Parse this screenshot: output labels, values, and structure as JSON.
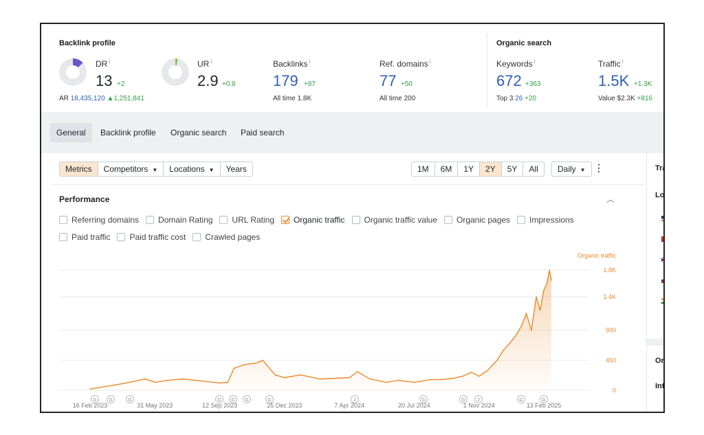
{
  "backlink_profile": {
    "title": "Backlink profile",
    "dr": {
      "label": "DR",
      "value": "13",
      "delta": "+2",
      "fill_fraction": 0.13
    },
    "ar": {
      "label": "AR",
      "value": "18,435,120",
      "delta": "▲1,251,841"
    },
    "ur": {
      "label": "UR",
      "value": "2.9",
      "delta": "+0.8",
      "fill_fraction": 0.03
    },
    "backlinks": {
      "label": "Backlinks",
      "value": "179",
      "delta": "+87",
      "sub_label": "All time",
      "sub_value": "1.8K"
    },
    "ref_domains": {
      "label": "Ref. domains",
      "value": "77",
      "delta": "+50",
      "sub_label": "All time",
      "sub_value": "200"
    },
    "info": "i"
  },
  "organic_search": {
    "title": "Organic search",
    "keywords": {
      "label": "Keywords",
      "value": "672",
      "delta": "+363",
      "sub_label": "Top 3",
      "sub_value": "26",
      "sub_delta": "+20"
    },
    "traffic": {
      "label": "Traffic",
      "value": "1.5K",
      "delta": "+1.3K",
      "sub_label": "Value",
      "sub_value": "$2.3K",
      "sub_delta": "+816"
    }
  },
  "tabs": [
    "General",
    "Backlink profile",
    "Organic search",
    "Paid search"
  ],
  "toolbar": {
    "metrics": "Metrics",
    "competitors": "Competitors",
    "locations": "Locations",
    "years": "Years",
    "ranges": [
      "1M",
      "6M",
      "1Y",
      "2Y",
      "5Y",
      "All"
    ],
    "active_range": "2Y",
    "interval": "Daily",
    "menu": "⋮"
  },
  "performance": {
    "title": "Performance",
    "collapse_icon": "chevron-up-icon",
    "checkboxes_row1": [
      {
        "label": "Referring domains",
        "checked": false
      },
      {
        "label": "Domain Rating",
        "checked": false
      },
      {
        "label": "URL Rating",
        "checked": false
      },
      {
        "label": "Organic traffic",
        "checked": true
      },
      {
        "label": "Organic traffic value",
        "checked": false
      },
      {
        "label": "Organic pages",
        "checked": false
      },
      {
        "label": "Impressions",
        "checked": false
      }
    ],
    "checkboxes_row2": [
      {
        "label": "Paid traffic",
        "checked": false
      },
      {
        "label": "Paid traffic cost",
        "checked": false
      },
      {
        "label": "Crawled pages",
        "checked": false
      }
    ]
  },
  "chart_data": {
    "type": "area",
    "series": [
      {
        "name": "Organic traffic",
        "color": "#e8892b"
      }
    ],
    "x_ticks": [
      "16 Feb 2023",
      "31 May 2023",
      "12 Sep 2023",
      "25 Dec 2023",
      "7 Apr 2024",
      "20 Jul 2024",
      "1 Nov 2024",
      "13 Feb 2025"
    ],
    "y_ticks": [
      "1.8K",
      "1.4K",
      "900",
      "450",
      "0"
    ],
    "ylim": [
      0,
      1800
    ],
    "x": [
      "2023-02-16",
      "2023-03-15",
      "2023-04-15",
      "2023-05-15",
      "2023-06-01",
      "2023-06-20",
      "2023-07-15",
      "2023-08-15",
      "2023-09-12",
      "2023-09-25",
      "2023-10-05",
      "2023-10-20",
      "2023-11-10",
      "2023-11-20",
      "2023-12-10",
      "2023-12-25",
      "2024-01-20",
      "2024-02-20",
      "2024-03-15",
      "2024-04-07",
      "2024-04-20",
      "2024-05-10",
      "2024-06-05",
      "2024-06-25",
      "2024-07-20",
      "2024-08-15",
      "2024-09-01",
      "2024-09-20",
      "2024-10-05",
      "2024-10-20",
      "2024-11-01",
      "2024-11-15",
      "2024-11-30",
      "2024-12-10",
      "2024-12-20",
      "2024-12-30",
      "2025-01-08",
      "2025-01-16",
      "2025-01-24",
      "2025-02-01",
      "2025-02-07",
      "2025-02-13",
      "2025-02-18",
      "2025-02-22",
      "2025-02-25"
    ],
    "values": [
      20,
      60,
      110,
      170,
      120,
      150,
      170,
      140,
      110,
      120,
      330,
      380,
      410,
      450,
      230,
      190,
      230,
      170,
      180,
      190,
      280,
      170,
      120,
      150,
      120,
      160,
      160,
      180,
      210,
      270,
      210,
      300,
      450,
      600,
      700,
      820,
      960,
      1150,
      900,
      1400,
      1200,
      1500,
      1600,
      1800,
      1650
    ],
    "event_markers": [
      "G",
      "G",
      "G",
      "G",
      "G",
      "G",
      "G",
      "2",
      "G",
      "G",
      "2",
      "G",
      "G"
    ]
  },
  "right_panel": {
    "tab_label": "Traf",
    "loc_label": "Loc",
    "flags": [
      "us-flag-icon",
      "ca-flag-icon",
      "uk-flag-icon",
      "ru-flag-icon",
      "in-flag-icon"
    ],
    "prev_icon": "chevron-left-icon",
    "org_label": "Org",
    "int_label": "Int"
  }
}
